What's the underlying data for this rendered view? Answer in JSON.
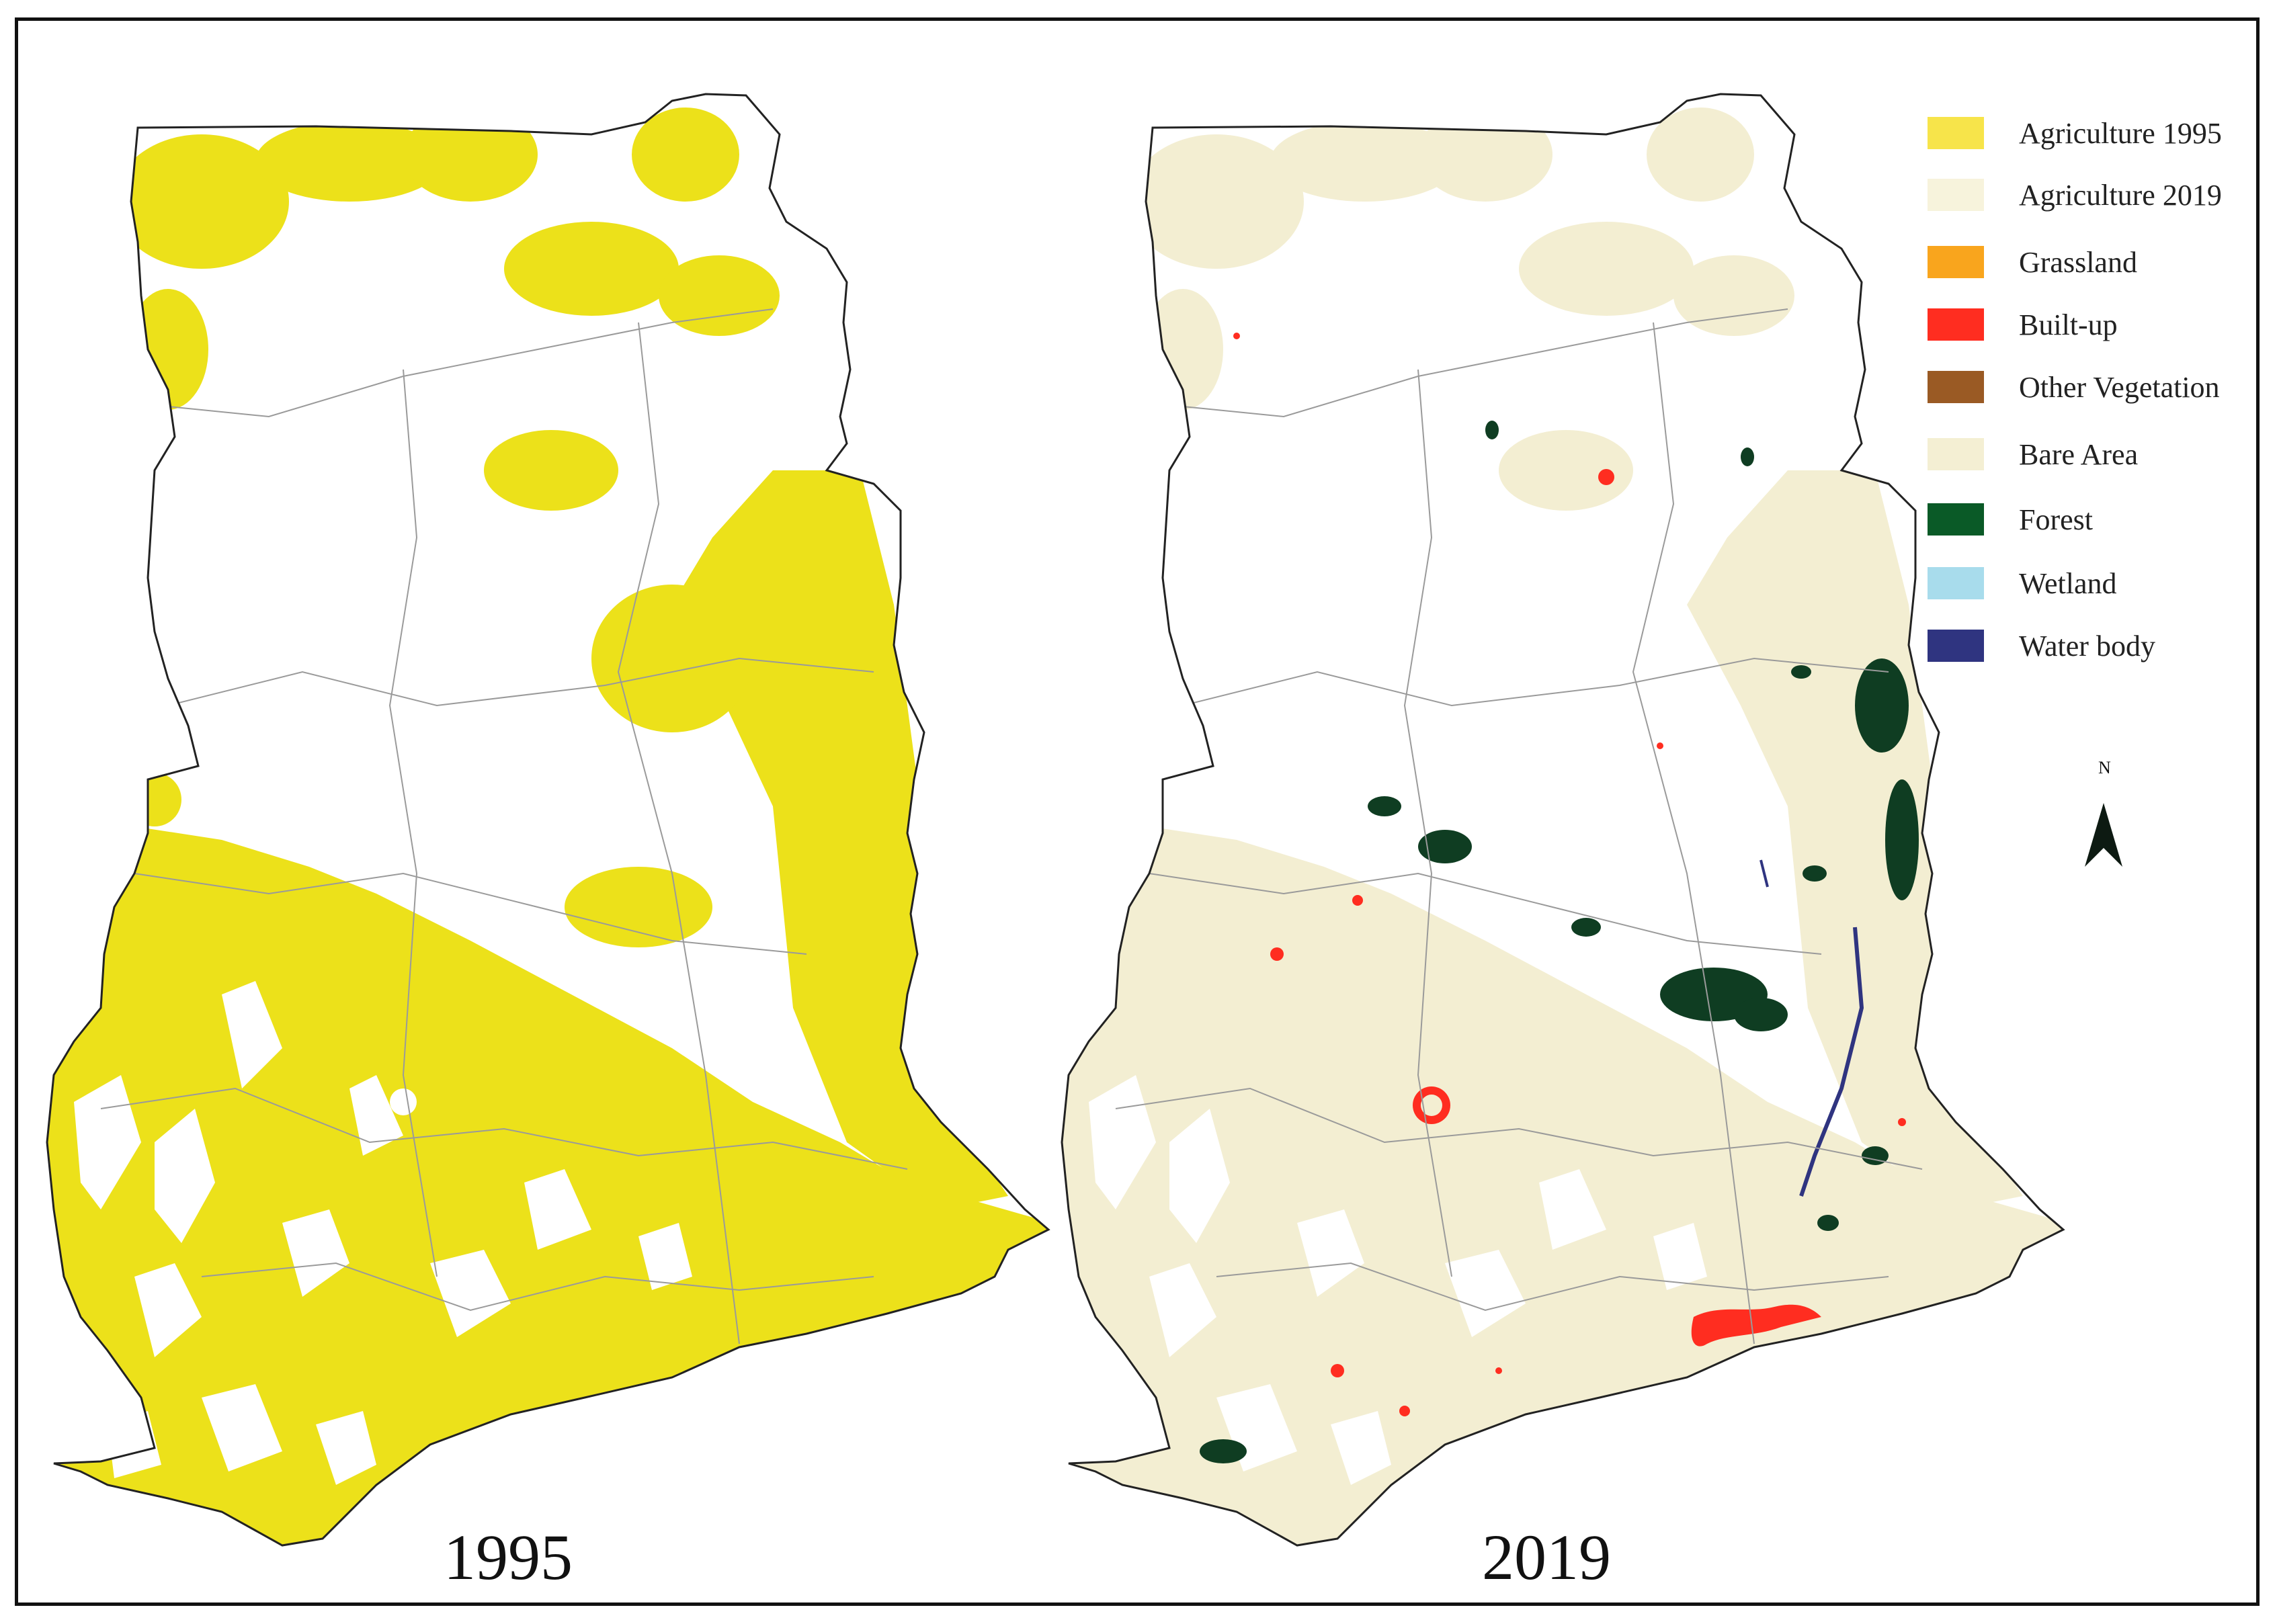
{
  "maps": [
    {
      "label": "1995",
      "agriculture_color": "#ece11a"
    },
    {
      "label": "2019",
      "agriculture_color": "#f3eed2"
    }
  ],
  "legend": {
    "items": [
      {
        "label": "Agriculture 1995",
        "color": "#f7e44a"
      },
      {
        "label": "Agriculture 2019",
        "color": "#f7f3dc"
      },
      {
        "label": "Grassland",
        "color": "#f9a51d"
      },
      {
        "label": "Built-up",
        "color": "#ff2d20"
      },
      {
        "label": "Other Vegetation",
        "color": "#9a5a24"
      },
      {
        "label": "Bare Area",
        "color": "#f4efd3"
      },
      {
        "label": "Forest",
        "color": "#0a5a27"
      },
      {
        "label": "Wetland",
        "color": "#a8dcec"
      },
      {
        "label": "Water body",
        "color": "#2f3480"
      }
    ]
  },
  "north_arrow": {
    "label": "N"
  },
  "colors": {
    "builtup": "#ff2d20",
    "forest": "#0f3d22",
    "water": "#2f3480",
    "boundary": "#222222",
    "district_lines": "#9a9a9a"
  }
}
